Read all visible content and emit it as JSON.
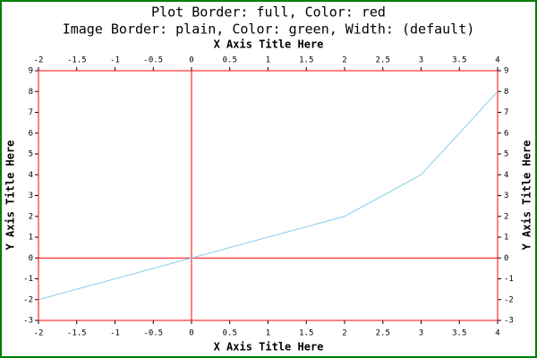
{
  "chart_data": {
    "type": "line",
    "title": "Plot Border: full, Color: red",
    "subtitle": "Image Border: plain, Color: green, Width: (default)",
    "x_label": "X Axis Title Here",
    "y_label": "Y Axis Title Here",
    "x": [
      -2,
      0,
      2,
      3,
      4
    ],
    "values": [
      -2,
      0,
      2,
      4,
      8
    ],
    "color": "#87ceeb",
    "border_color": "red",
    "image_border_color": "green",
    "xlim": [
      -2,
      4
    ],
    "xticks": [
      -2,
      -1.5,
      -1,
      -0.5,
      0,
      0.5,
      1,
      1.5,
      2,
      2.5,
      3,
      3.5,
      4
    ],
    "ylim": [
      -3,
      9
    ],
    "yticks": [
      -3,
      -2,
      -1,
      0,
      1,
      2,
      3,
      4,
      5,
      6,
      7,
      8,
      9
    ]
  }
}
